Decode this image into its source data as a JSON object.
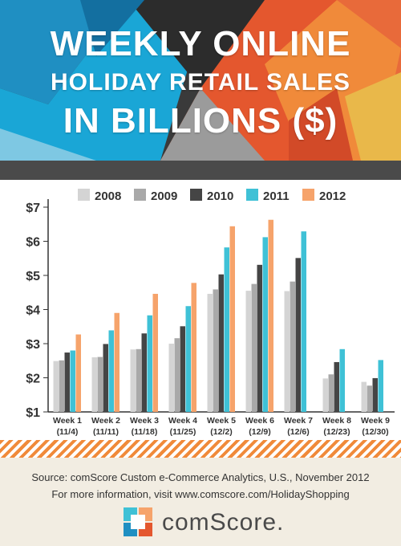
{
  "header": {
    "title_line1": "WEEKLY ONLINE",
    "title_line2": "HOLIDAY RETAIL SALES",
    "title_line3": "IN BILLIONS ($)"
  },
  "chart_data": {
    "type": "bar",
    "ylim": [
      1,
      7
    ],
    "y_ticks": [
      "$1",
      "$2",
      "$3",
      "$4",
      "$5",
      "$6",
      "$7"
    ],
    "grid": false,
    "legend_position": "top",
    "categories": [
      {
        "week": "Week 1",
        "date": "(11/4)"
      },
      {
        "week": "Week 2",
        "date": "(11/11)"
      },
      {
        "week": "Week 3",
        "date": "(11/18)"
      },
      {
        "week": "Week 4",
        "date": "(11/25)"
      },
      {
        "week": "Week 5",
        "date": "(12/2)"
      },
      {
        "week": "Week 6",
        "date": "(12/9)"
      },
      {
        "week": "Week 7",
        "date": "(12/6)"
      },
      {
        "week": "Week 8",
        "date": "(12/23)"
      },
      {
        "week": "Week 9",
        "date": "(12/30)"
      }
    ],
    "series": [
      {
        "name": "2008",
        "color": "#d4d4d4",
        "values": [
          2.49,
          2.6,
          2.83,
          3.0,
          4.46,
          4.55,
          4.54,
          1.98,
          1.88
        ]
      },
      {
        "name": "2009",
        "color": "#a9a9a9",
        "values": [
          2.51,
          2.61,
          2.84,
          3.16,
          4.59,
          4.75,
          4.82,
          2.1,
          1.77
        ]
      },
      {
        "name": "2010",
        "color": "#454545",
        "values": [
          2.74,
          2.99,
          3.3,
          3.51,
          5.03,
          5.31,
          5.51,
          2.46,
          1.99
        ]
      },
      {
        "name": "2011",
        "color": "#3fc1d6",
        "values": [
          2.8,
          3.39,
          3.83,
          4.1,
          5.82,
          6.12,
          6.29,
          2.84,
          2.52
        ]
      },
      {
        "name": "2012",
        "color": "#f6a36b",
        "values": [
          3.27,
          3.9,
          4.46,
          4.78,
          6.44,
          6.63,
          null,
          null,
          null
        ]
      }
    ]
  },
  "footer": {
    "source": "Source: comScore Custom e-Commerce Analytics, U.S., November 2012",
    "more_info": "For more information, visit www.comscore.com/HolidayShopping",
    "logo_text": "comScore."
  }
}
